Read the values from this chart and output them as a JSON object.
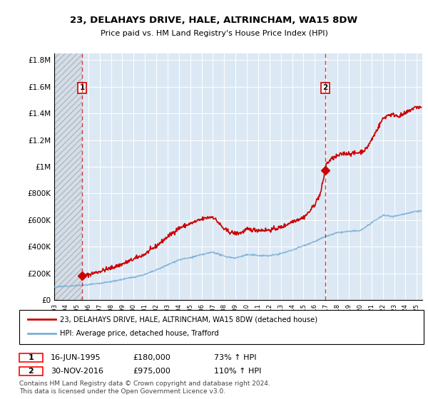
{
  "title": "23, DELAHAYS DRIVE, HALE, ALTRINCHAM, WA15 8DW",
  "subtitle": "Price paid vs. HM Land Registry's House Price Index (HPI)",
  "sale1_year": 1995.46,
  "sale1_price": 180000,
  "sale2_year": 2016.92,
  "sale2_price": 975000,
  "legend_line1": "23, DELAHAYS DRIVE, HALE, ALTRINCHAM, WA15 8DW (detached house)",
  "legend_line2": "HPI: Average price, detached house, Trafford",
  "footnote1": "Contains HM Land Registry data © Crown copyright and database right 2024.",
  "footnote2": "This data is licensed under the Open Government Licence v3.0.",
  "red_color": "#cc0000",
  "blue_color": "#7bafd4",
  "bg_plot": "#dce9f5",
  "bg_hatch_face": "#d0d8e0",
  "ylim_max": 1850000,
  "xlim_min": 1993.0,
  "xlim_max": 2025.5,
  "hpi_years": [
    1993,
    1994,
    1995,
    1996,
    1997,
    1998,
    1999,
    2000,
    2001,
    2002,
    2003,
    2004,
    2005,
    2006,
    2007,
    2008,
    2009,
    2010,
    2011,
    2012,
    2013,
    2014,
    2015,
    2016,
    2017,
    2018,
    2019,
    2020,
    2021,
    2022,
    2023,
    2024,
    2025
  ],
  "hpi_blue": [
    98000,
    103000,
    108000,
    114000,
    124000,
    138000,
    155000,
    172000,
    192000,
    225000,
    264000,
    302000,
    318000,
    340000,
    360000,
    328000,
    315000,
    340000,
    335000,
    332000,
    348000,
    375000,
    408000,
    440000,
    478000,
    505000,
    515000,
    520000,
    578000,
    635000,
    628000,
    648000,
    668000
  ],
  "red_knots_year": [
    1995.46,
    1996,
    1997,
    1998,
    1999,
    2000,
    2001,
    2002,
    2003,
    2004,
    2005,
    2006,
    2006.5,
    2007,
    2007.5,
    2008,
    2008.5,
    2009,
    2009.5,
    2010,
    2011,
    2012,
    2013,
    2013.5,
    2014,
    2015,
    2015.5,
    2016,
    2016.5,
    2016.92,
    2017,
    2017.5,
    2018,
    2018.5,
    2019,
    2019.5,
    2020,
    2020.5,
    2021,
    2021.5,
    2022,
    2022.5,
    2023,
    2023.5,
    2024,
    2024.5,
    2025,
    2025.25
  ],
  "red_knots_val": [
    180000,
    190000,
    215000,
    240000,
    270000,
    306000,
    345000,
    405000,
    475000,
    540000,
    573000,
    605000,
    618000,
    625000,
    580000,
    530000,
    510000,
    500000,
    505000,
    530000,
    525000,
    525000,
    545000,
    565000,
    590000,
    620000,
    660000,
    720000,
    800000,
    975000,
    1020000,
    1060000,
    1080000,
    1100000,
    1100000,
    1100000,
    1110000,
    1130000,
    1200000,
    1280000,
    1360000,
    1390000,
    1390000,
    1380000,
    1400000,
    1430000,
    1450000,
    1445000
  ]
}
